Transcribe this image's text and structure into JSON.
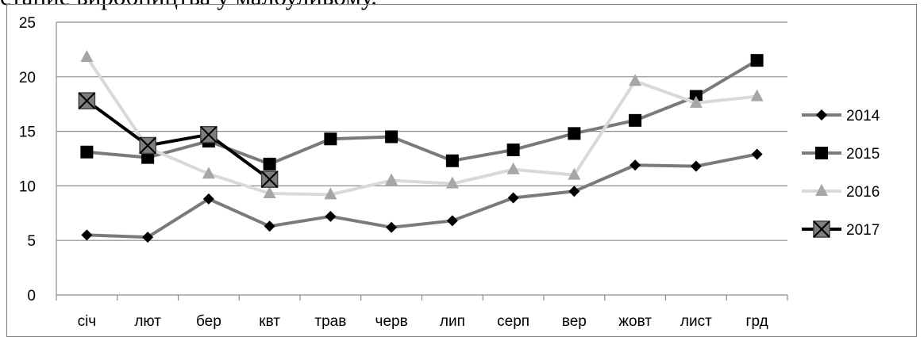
{
  "caption": "стание виробництва у малоуливому.",
  "chart_data": {
    "type": "line",
    "categories": [
      "січ",
      "лют",
      "бер",
      "квт",
      "трав",
      "черв",
      "лип",
      "серп",
      "вер",
      "жовт",
      "лист",
      "грд"
    ],
    "ylim": [
      0,
      25
    ],
    "yticks": [
      0,
      5,
      10,
      15,
      20,
      25
    ],
    "grid": true,
    "legend": "right",
    "series": [
      {
        "name": "2014",
        "marker": "diamond",
        "color": "#7a7a7a",
        "marker_color": "#000000",
        "values": [
          5.5,
          5.3,
          8.8,
          6.3,
          7.2,
          6.2,
          6.8,
          8.9,
          9.5,
          11.9,
          11.8,
          12.9
        ]
      },
      {
        "name": "2015",
        "marker": "square",
        "color": "#7a7a7a",
        "marker_color": "#000000",
        "values": [
          13.1,
          12.6,
          14.1,
          12.0,
          14.3,
          14.5,
          12.3,
          13.3,
          14.8,
          16.0,
          18.2,
          21.5
        ]
      },
      {
        "name": "2016",
        "marker": "triangle",
        "color": "#d9d9d9",
        "marker_color": "#a6a6a6",
        "values": [
          21.8,
          13.5,
          11.1,
          9.3,
          9.2,
          10.5,
          10.2,
          11.5,
          11.0,
          19.6,
          17.6,
          18.2
        ]
      },
      {
        "name": "2017",
        "marker": "x-square",
        "color": "#000000",
        "marker_color": "#7f7f7f",
        "values": [
          17.8,
          13.7,
          14.7,
          10.6,
          null,
          null,
          null,
          null,
          null,
          null,
          null,
          null
        ]
      }
    ]
  }
}
